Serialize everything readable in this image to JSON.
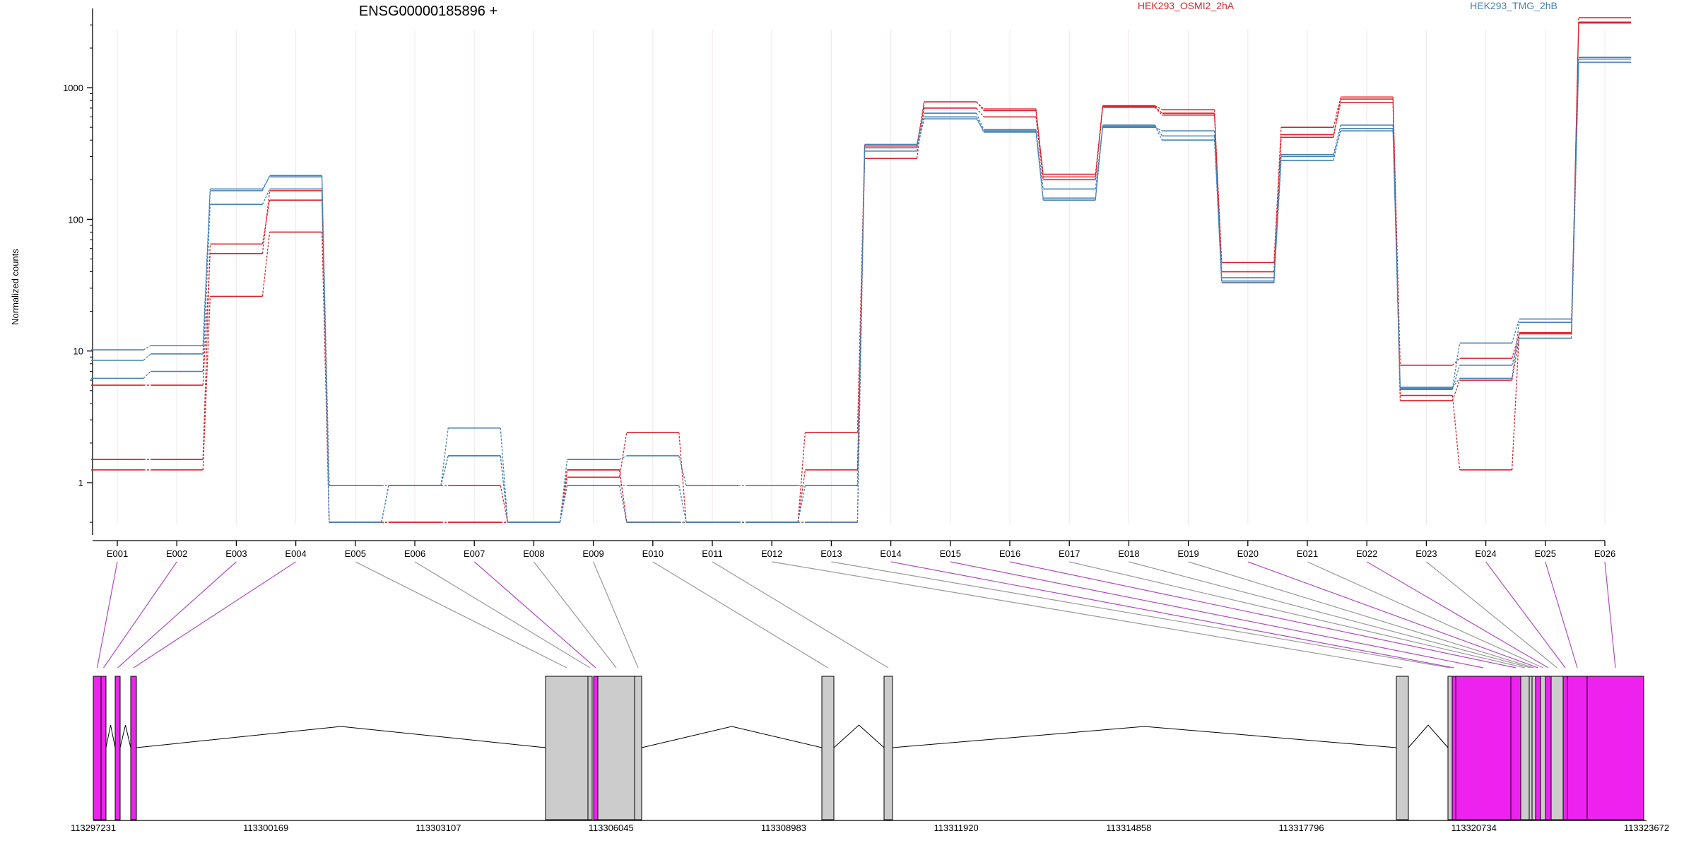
{
  "chart_data": {
    "type": "line",
    "title": "ENSG00000185896 +",
    "ylabel": "Normalized counts",
    "xlabel": "",
    "y_scale": "log",
    "ylim": [
      0.4,
      4000
    ],
    "y_ticks": [
      1,
      10,
      100,
      1000
    ],
    "y_tick_labels": [
      "1",
      "10",
      "100",
      "1000"
    ],
    "grid": "vertical lines at each exon, faint",
    "legend": [
      {
        "name": "HEK293_OSMI2_2hA",
        "color": "#d9252b"
      },
      {
        "name": "HEK293_TMG_2hB",
        "color": "#4682b4"
      }
    ],
    "categories": [
      "E001",
      "E002",
      "E003",
      "E004",
      "E005",
      "E006",
      "E007",
      "E008",
      "E009",
      "E010",
      "E011",
      "E012",
      "E013",
      "E014",
      "E015",
      "E016",
      "E017",
      "E018",
      "E019",
      "E020",
      "E021",
      "E022",
      "E023",
      "E024",
      "E025",
      "E026"
    ],
    "series": [
      {
        "group": "HEK293_OSMI2_2hA",
        "color": "#d9252b",
        "values": [
          5.5,
          5.5,
          55,
          165,
          0.95,
          0.95,
          0.95,
          0.5,
          1.1,
          2.4,
          0.5,
          0.5,
          2.4,
          360,
          780,
          670,
          220,
          720,
          640,
          47,
          500,
          850,
          7.8,
          8.8,
          13.5,
          3100
        ]
      },
      {
        "group": "HEK293_OSMI2_2hA",
        "color": "#d9252b",
        "values": [
          1.25,
          1.25,
          26,
          80,
          0.5,
          0.5,
          0.5,
          0.5,
          1.25,
          0.5,
          0.5,
          0.5,
          1.25,
          290,
          780,
          690,
          210,
          730,
          680,
          33,
          440,
          770,
          4.6,
          1.25,
          13.8,
          3150
        ]
      },
      {
        "group": "HEK293_OSMI2_2hA",
        "color": "#d9252b",
        "values": [
          1.5,
          1.5,
          65,
          140,
          0.5,
          0.5,
          0.5,
          0.5,
          1.25,
          0.5,
          0.5,
          0.5,
          0.5,
          370,
          700,
          600,
          200,
          710,
          620,
          40,
          420,
          820,
          4.2,
          6.0,
          12.5,
          3400
        ]
      },
      {
        "group": "HEK293_TMG_2hB",
        "color": "#4682b4",
        "values": [
          10.2,
          11,
          170,
          210,
          0.95,
          0.95,
          1.6,
          0.5,
          1.5,
          1.6,
          0.95,
          0.95,
          0.95,
          370,
          640,
          480,
          170,
          500,
          470,
          33,
          310,
          520,
          5.2,
          11.5,
          17.5,
          1650
        ]
      },
      {
        "group": "HEK293_TMG_2hB",
        "color": "#4682b4",
        "values": [
          8.5,
          9.5,
          165,
          215,
          0.5,
          0.95,
          2.6,
          0.5,
          0.95,
          0.95,
          0.5,
          0.5,
          0.95,
          330,
          600,
          460,
          145,
          520,
          430,
          34,
          280,
          490,
          5.1,
          7.8,
          12.5,
          1560
        ]
      },
      {
        "group": "HEK293_TMG_2hB",
        "color": "#4682b4",
        "values": [
          6.2,
          7,
          130,
          170,
          0.5,
          0.95,
          1.6,
          0.5,
          0.95,
          0.5,
          0.5,
          0.5,
          0.5,
          350,
          580,
          470,
          140,
          510,
          400,
          36,
          300,
          470,
          5.3,
          6.2,
          16.5,
          1700
        ]
      }
    ],
    "genomic_axis_labels": [
      "113297231",
      "113300169",
      "113303107",
      "113306045",
      "113308983",
      "113311920",
      "113314858",
      "113317796",
      "113320734",
      "113323672"
    ],
    "exon_highlight": [
      "magenta",
      "magenta",
      "magenta",
      "magenta",
      "grey",
      "grey",
      "magenta",
      "grey",
      "grey",
      "grey",
      "grey",
      "grey",
      "grey",
      "magenta",
      "magenta",
      "magenta",
      "grey",
      "grey",
      "grey",
      "magenta",
      "grey",
      "magenta",
      "grey",
      "magenta",
      "magenta",
      "magenta"
    ],
    "colors": {
      "highlight_exon": "#ee22ee",
      "other_exon": "#cccccc",
      "intron": "#000000"
    }
  }
}
